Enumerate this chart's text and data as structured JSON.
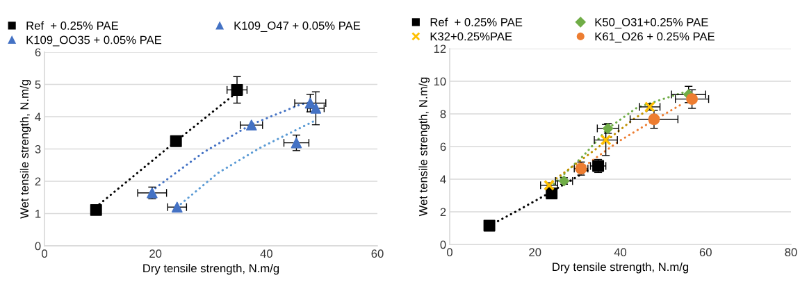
{
  "chart_data": [
    {
      "type": "scatter",
      "xlabel": "Dry tensile strength, N.m/g",
      "ylabel": "Wet tensile strength, N.m/g",
      "xlim": [
        0,
        60
      ],
      "xticks": [
        0,
        20,
        40,
        60
      ],
      "ylim": [
        0,
        6
      ],
      "yticks": [
        0,
        1,
        2,
        3,
        4,
        5,
        6
      ],
      "grid": "y",
      "legend": "top",
      "series": [
        {
          "name": "Ref  + 0.25% PAE",
          "color": "#000000",
          "marker": "square",
          "x": [
            9.3,
            23.7,
            34.7
          ],
          "values": [
            1.11,
            3.24,
            4.83
          ],
          "errors": [
            null,
            null,
            0.41
          ],
          "xerrors": [
            null,
            null,
            1.8
          ]
        },
        {
          "name": "K109_O47 + 0.05% PAE",
          "color": "#4472c4",
          "marker": "triangle",
          "x": [
            19.4,
            37.3,
            47.9
          ],
          "values": [
            1.64,
            3.74,
            4.42
          ],
          "errors": [
            0.18,
            null,
            0.27
          ],
          "xerrors": [
            2.6,
            2.0,
            2.8
          ]
        },
        {
          "name": "K109_OO35 + 0.05% PAE",
          "color": "#4472c4",
          "marker": "triangle",
          "x": [
            23.9,
            45.4,
            48.9
          ],
          "values": [
            1.2,
            3.19,
            4.26
          ],
          "errors": [
            null,
            0.24,
            0.51
          ],
          "xerrors": [
            1.7,
            2.25,
            1.5
          ]
        },
        {
          "type": "line",
          "color": "#000000",
          "line_style": "dotted",
          "marker": "none",
          "x": [
            9.9,
            23.7,
            33.8
          ],
          "values": [
            1.29,
            3.24,
            4.63
          ]
        },
        {
          "type": "line",
          "color": "#4472c4",
          "line_style": "dotted",
          "marker": "none",
          "x": [
            20.0,
            28.7,
            37.3,
            46.3,
            48.0
          ],
          "values": [
            1.79,
            2.9,
            3.76,
            4.39,
            4.44
          ]
        },
        {
          "type": "line",
          "color": "#5b9bd5",
          "line_style": "dotted",
          "marker": "none",
          "x": [
            23.9,
            31.3,
            38.8,
            48.9
          ],
          "values": [
            1.2,
            2.26,
            3.03,
            3.89
          ]
        }
      ]
    },
    {
      "type": "scatter",
      "xlabel": "Dry tensile strength, N.m/g",
      "ylabel": "Wet tensile strength, N.m/g",
      "xlim": [
        0,
        80
      ],
      "xticks": [
        0,
        20,
        40,
        60,
        80
      ],
      "ylim": [
        0,
        12
      ],
      "yticks": [
        0,
        2,
        4,
        6,
        8,
        10,
        12
      ],
      "grid": "y",
      "legend": "top",
      "series": [
        {
          "name": "Ref  + 0.25% PAE",
          "color": "#000000",
          "marker": "square",
          "x": [
            9.3,
            23.9,
            34.8
          ],
          "values": [
            1.15,
            3.13,
            4.81
          ],
          "errors": [
            null,
            null,
            0.4
          ],
          "xerrors": [
            null,
            null,
            1.8
          ]
        },
        {
          "name": "K50_O31+0.25% PAE",
          "color": "#70ad47",
          "marker": "diamond",
          "x": [
            26.8,
            37.1,
            56.0
          ],
          "values": [
            3.89,
            7.11,
            9.19
          ],
          "errors": [
            0.2,
            0.3,
            0.5
          ],
          "xerrors": [
            2.0,
            2.5,
            4.0
          ]
        },
        {
          "name": "K32+0.25%PAE",
          "color": "#ffc000",
          "marker": "cross",
          "x": [
            23.3,
            36.6,
            46.9
          ],
          "values": [
            3.63,
            6.4,
            8.43
          ],
          "errors": [
            0.15,
            0.95,
            0.2
          ],
          "xerrors": [
            2.0,
            2.7,
            2.4
          ]
        },
        {
          "name": "K61_O26 + 0.25% PAE",
          "color": "#ed7d31",
          "marker": "circle",
          "x": [
            30.8,
            47.9,
            56.8
          ],
          "values": [
            4.65,
            7.67,
            8.91
          ],
          "errors": [
            0.4,
            0.55,
            0.57
          ],
          "xerrors": [
            1.6,
            5.6,
            3.9
          ]
        },
        {
          "type": "line",
          "color": "#000000",
          "line_style": "dotted",
          "marker": "none",
          "x": [
            9.3,
            15.2,
            22.2,
            29.3,
            32.8
          ],
          "values": [
            1.15,
            1.97,
            2.99,
            4.06,
            4.62
          ]
        },
        {
          "type": "line",
          "color": "#70ad47",
          "line_style": "dotted",
          "marker": "none",
          "x": [
            24.4,
            31.5,
            37.1,
            43.9,
            52.1,
            55.6
          ],
          "values": [
            3.7,
            5.48,
            7.11,
            8.38,
            9.09,
            9.38
          ]
        },
        {
          "type": "line",
          "color": "#bf9000",
          "line_style": "dotted",
          "marker": "none",
          "x": [
            24.1,
            34.2,
            43.4,
            46.6
          ],
          "values": [
            3.87,
            5.83,
            7.74,
            8.24
          ]
        },
        {
          "type": "line",
          "color": "#ed7d31",
          "line_style": "dotted",
          "marker": "none",
          "x": [
            30.8,
            39.7,
            47.8,
            54.9
          ],
          "values": [
            4.65,
            6.33,
            7.6,
            8.67
          ]
        }
      ]
    }
  ]
}
